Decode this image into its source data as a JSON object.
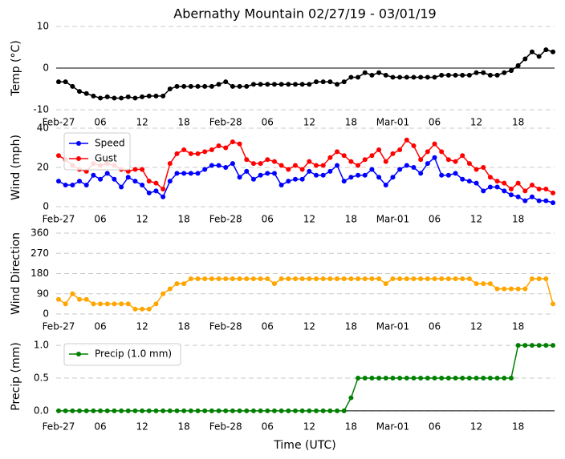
{
  "chart_data": [
    {
      "type": "line",
      "title": "Abernathy Mountain 02/27/19 - 03/01/19",
      "y_label": "Temp (°C)",
      "categories": [
        "Feb-27",
        null,
        null,
        null,
        null,
        null,
        "06",
        null,
        null,
        null,
        null,
        null,
        "12",
        null,
        null,
        null,
        null,
        null,
        "18",
        null,
        null,
        null,
        null,
        null,
        "Feb-28",
        null,
        null,
        null,
        null,
        null,
        "06",
        null,
        null,
        null,
        null,
        null,
        "12",
        null,
        null,
        null,
        null,
        null,
        "18",
        null,
        null,
        null,
        null,
        null,
        "Mar-01",
        null,
        null,
        null,
        null,
        null,
        "06",
        null,
        null,
        null,
        null,
        null,
        "12",
        null,
        null,
        null,
        null,
        null,
        "18",
        null,
        null,
        null,
        null,
        null
      ],
      "series": [
        {
          "color": "#000000",
          "values": [
            -3.3,
            -3.3,
            -4.4,
            -5.6,
            -6.1,
            -6.7,
            -7.2,
            -6.9,
            -7.2,
            -7.2,
            -6.9,
            -7.2,
            -6.9,
            -6.7,
            -6.7,
            -6.7,
            -5.0,
            -4.4,
            -4.4,
            -4.4,
            -4.4,
            -4.4,
            -4.4,
            -3.9,
            -3.3,
            -4.4,
            -4.4,
            -4.4,
            -3.9,
            -3.9,
            -3.9,
            -3.9,
            -3.9,
            -3.9,
            -3.9,
            -3.9,
            -3.9,
            -3.3,
            -3.3,
            -3.3,
            -3.9,
            -3.3,
            -2.2,
            -2.2,
            -1.1,
            -1.7,
            -1.1,
            -1.7,
            -2.2,
            -2.2,
            -2.2,
            -2.2,
            -2.2,
            -2.2,
            -2.2,
            -1.7,
            -1.7,
            -1.7,
            -1.7,
            -1.7,
            -1.1,
            -1.1,
            -1.7,
            -1.7,
            -1.1,
            -0.6,
            0.6,
            2.2,
            3.9,
            2.8,
            4.4,
            3.9
          ]
        }
      ],
      "ylim": [
        -10,
        10
      ],
      "yticks": [
        -10,
        0,
        10
      ],
      "grid": true
    },
    {
      "type": "line",
      "y_label": "Wind (mph)",
      "legend": "upper left",
      "categories": [
        "Feb-27",
        null,
        null,
        null,
        null,
        null,
        "06",
        null,
        null,
        null,
        null,
        null,
        "12",
        null,
        null,
        null,
        null,
        null,
        "18",
        null,
        null,
        null,
        null,
        null,
        "Feb-28",
        null,
        null,
        null,
        null,
        null,
        "06",
        null,
        null,
        null,
        null,
        null,
        "12",
        null,
        null,
        null,
        null,
        null,
        "18",
        null,
        null,
        null,
        null,
        null,
        "Mar-01",
        null,
        null,
        null,
        null,
        null,
        "06",
        null,
        null,
        null,
        null,
        null,
        "12",
        null,
        null,
        null,
        null,
        null,
        "18",
        null,
        null,
        null,
        null,
        null
      ],
      "series": [
        {
          "name": "Speed",
          "color": "#0000ff",
          "values": [
            13,
            11,
            11,
            13,
            11,
            16,
            14,
            17,
            14,
            10,
            15,
            13,
            11,
            7,
            8,
            5,
            13,
            17,
            17,
            17,
            17,
            19,
            21,
            21,
            20,
            22,
            15,
            18,
            14,
            16,
            17,
            17,
            11,
            13,
            14,
            14,
            18,
            16,
            16,
            18,
            21,
            13,
            15,
            16,
            16,
            19,
            15,
            11,
            15,
            19,
            21,
            20,
            17,
            22,
            25,
            16,
            16,
            17,
            14,
            13,
            12,
            8,
            10,
            10,
            8,
            6,
            5,
            3,
            5,
            3,
            3,
            2
          ]
        },
        {
          "name": "Gust",
          "color": "#ff0000",
          "values": [
            26,
            24,
            21,
            19,
            18,
            22,
            21,
            22,
            21,
            19,
            18,
            19,
            19,
            13,
            12,
            9,
            22,
            27,
            29,
            27,
            27,
            28,
            29,
            31,
            30,
            33,
            32,
            24,
            22,
            22,
            24,
            23,
            21,
            19,
            21,
            19,
            23,
            21,
            21,
            25,
            28,
            26,
            23,
            21,
            24,
            26,
            29,
            23,
            27,
            29,
            34,
            31,
            24,
            28,
            32,
            28,
            24,
            23,
            26,
            22,
            19,
            20,
            15,
            13,
            12,
            9,
            12,
            8,
            11,
            9,
            9,
            7
          ]
        }
      ],
      "ylim": [
        0,
        40
      ],
      "yticks": [
        0,
        20,
        40
      ],
      "grid": true
    },
    {
      "type": "line",
      "y_label": "Wind Direction",
      "categories": [
        "Feb-27",
        null,
        null,
        null,
        null,
        null,
        "06",
        null,
        null,
        null,
        null,
        null,
        "12",
        null,
        null,
        null,
        null,
        null,
        "18",
        null,
        null,
        null,
        null,
        null,
        "Feb-28",
        null,
        null,
        null,
        null,
        null,
        "06",
        null,
        null,
        null,
        null,
        null,
        "12",
        null,
        null,
        null,
        null,
        null,
        "18",
        null,
        null,
        null,
        null,
        null,
        "Mar-01",
        null,
        null,
        null,
        null,
        null,
        "06",
        null,
        null,
        null,
        null,
        null,
        "12",
        null,
        null,
        null,
        null,
        null,
        "18",
        null,
        null,
        null,
        null,
        null
      ],
      "series": [
        {
          "color": "#ffa500",
          "values": [
            65,
            45,
            90,
            65,
            65,
            45,
            45,
            45,
            45,
            45,
            45,
            22,
            22,
            22,
            45,
            90,
            112,
            135,
            135,
            157,
            157,
            157,
            157,
            157,
            157,
            157,
            157,
            157,
            157,
            157,
            157,
            135,
            157,
            157,
            157,
            157,
            157,
            157,
            157,
            157,
            157,
            157,
            157,
            157,
            157,
            157,
            157,
            135,
            157,
            157,
            157,
            157,
            157,
            157,
            157,
            157,
            157,
            157,
            157,
            157,
            135,
            135,
            135,
            112,
            112,
            112,
            112,
            112,
            157,
            157,
            157,
            45
          ]
        }
      ],
      "ylim": [
        0,
        360
      ],
      "yticks": [
        0,
        90,
        180,
        270,
        360
      ],
      "grid": true
    },
    {
      "type": "line",
      "y_label": "Precip (mm)",
      "x_label": "Time (UTC)",
      "legend": "upper left",
      "categories": [
        "Feb-27",
        null,
        null,
        null,
        null,
        null,
        "06",
        null,
        null,
        null,
        null,
        null,
        "12",
        null,
        null,
        null,
        null,
        null,
        "18",
        null,
        null,
        null,
        null,
        null,
        "Feb-28",
        null,
        null,
        null,
        null,
        null,
        "06",
        null,
        null,
        null,
        null,
        null,
        "12",
        null,
        null,
        null,
        null,
        null,
        "18",
        null,
        null,
        null,
        null,
        null,
        "Mar-01",
        null,
        null,
        null,
        null,
        null,
        "06",
        null,
        null,
        null,
        null,
        null,
        "12",
        null,
        null,
        null,
        null,
        null,
        "18",
        null,
        null,
        null,
        null,
        null
      ],
      "series": [
        {
          "name": "Precip (1.0 mm)",
          "color": "#008000",
          "values": [
            0,
            0,
            0,
            0,
            0,
            0,
            0,
            0,
            0,
            0,
            0,
            0,
            0,
            0,
            0,
            0,
            0,
            0,
            0,
            0,
            0,
            0,
            0,
            0,
            0,
            0,
            0,
            0,
            0,
            0,
            0,
            0,
            0,
            0,
            0,
            0,
            0,
            0,
            0,
            0,
            0,
            0,
            0.2,
            0.5,
            0.5,
            0.5,
            0.5,
            0.5,
            0.5,
            0.5,
            0.5,
            0.5,
            0.5,
            0.5,
            0.5,
            0.5,
            0.5,
            0.5,
            0.5,
            0.5,
            0.5,
            0.5,
            0.5,
            0.5,
            0.5,
            0.5,
            1.0,
            1.0,
            1.0,
            1.0,
            1.0,
            1.0
          ]
        }
      ],
      "ylim": [
        -0.05,
        1.1
      ],
      "yticks": [
        {
          "value": 0,
          "label": "0.0"
        },
        {
          "value": 0.5,
          "label": "0.5"
        },
        {
          "value": 1,
          "label": "1.0"
        }
      ],
      "grid": true
    }
  ]
}
